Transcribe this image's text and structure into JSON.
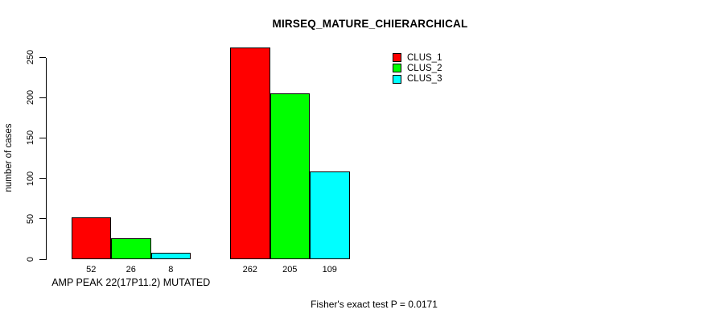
{
  "title": "MIRSEQ_MATURE_CHIERARCHICAL",
  "footer": "Fisher's exact test P = 0.0171",
  "legend": [
    {
      "label": "CLUS_1",
      "color": "#ff0000"
    },
    {
      "label": "CLUS_2",
      "color": "#00ff00"
    },
    {
      "label": "CLUS_3",
      "color": "#00ffff"
    }
  ],
  "chart_data": {
    "type": "bar",
    "title": "MIRSEQ_MATURE_CHIERARCHICAL",
    "xlabel": "AMP PEAK 22(17P11.2) MUTATED",
    "ylabel": "number of cases",
    "ylim": [
      0,
      250
    ],
    "yticks": [
      0,
      50,
      100,
      150,
      200,
      250
    ],
    "grid": false,
    "legend_position": "top-right",
    "categories": [
      "AMP PEAK 22(17P11.2) MUTATED",
      ""
    ],
    "series": [
      {
        "name": "CLUS_1",
        "color": "#ff0000",
        "values": [
          52,
          262
        ]
      },
      {
        "name": "CLUS_2",
        "color": "#00ff00",
        "values": [
          26,
          205
        ]
      },
      {
        "name": "CLUS_3",
        "color": "#00ffff",
        "values": [
          8,
          109
        ]
      }
    ],
    "annotation": "Fisher's exact test P = 0.0171"
  }
}
